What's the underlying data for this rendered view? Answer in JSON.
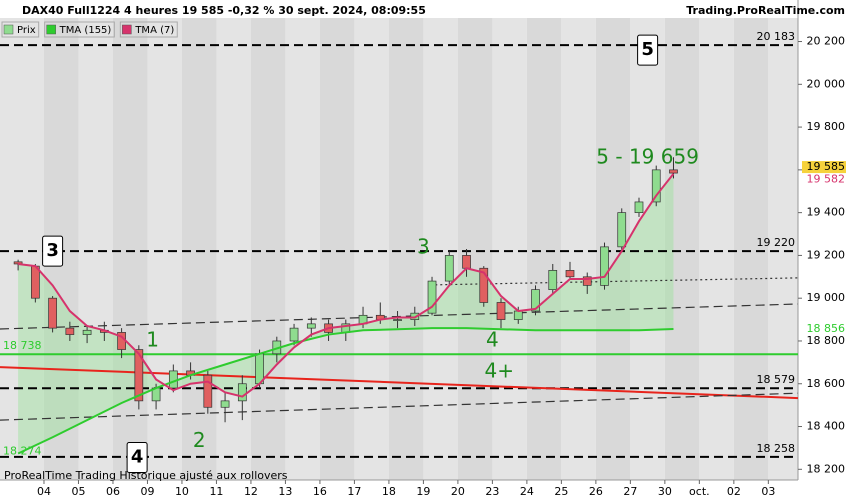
{
  "chart_data": {
    "type": "candlestick",
    "title": "DAX40 Full1224 4 heures 19 585 -0,32 % 30 sept. 2024, 08:09:55",
    "source": "Trading.ProRealTime.com",
    "footer": "ProRealTime Trading  Historique ajusté aux rollovers",
    "xlim": [
      -1.275,
      21.86
    ],
    "ylim": [
      18150,
      20310
    ],
    "xticks": [
      {
        "value": 0,
        "label": "04"
      },
      {
        "value": 1,
        "label": "05"
      },
      {
        "value": 2,
        "label": "06"
      },
      {
        "value": 3,
        "label": "09"
      },
      {
        "value": 4,
        "label": "10"
      },
      {
        "value": 5,
        "label": "11"
      },
      {
        "value": 6,
        "label": "12"
      },
      {
        "value": 7,
        "label": "13"
      },
      {
        "value": 8,
        "label": "16"
      },
      {
        "value": 9,
        "label": "17"
      },
      {
        "value": 10,
        "label": "18"
      },
      {
        "value": 11,
        "label": "19"
      },
      {
        "value": 12,
        "label": "20"
      },
      {
        "value": 13,
        "label": "23"
      },
      {
        "value": 14,
        "label": "24"
      },
      {
        "value": 15,
        "label": "25"
      },
      {
        "value": 16,
        "label": "26"
      },
      {
        "value": 17,
        "label": "27"
      },
      {
        "value": 18,
        "label": "30"
      },
      {
        "value": 19,
        "label": "oct."
      },
      {
        "value": 20,
        "label": "02"
      },
      {
        "value": 21,
        "label": "03"
      }
    ],
    "yticks": [
      {
        "value": 18200,
        "label": "18 200"
      },
      {
        "value": 18400,
        "label": "18 400"
      },
      {
        "value": 18600,
        "label": "18 600"
      },
      {
        "value": 18800,
        "label": "18 800"
      },
      {
        "value": 19000,
        "label": "19 000"
      },
      {
        "value": 19200,
        "label": "19 200"
      },
      {
        "value": 19400,
        "label": "19 400"
      },
      {
        "value": 19600,
        "label": "19 600"
      },
      {
        "value": 19800,
        "label": "19 800"
      },
      {
        "value": 20000,
        "label": "20 000"
      },
      {
        "value": 20200,
        "label": "20 200"
      }
    ],
    "candles": {
      "name": "Prix",
      "up_color": "#8fdc8f",
      "down_color": "#e06060",
      "x": [
        -0.75,
        -0.25,
        0.25,
        0.75,
        1.25,
        1.75,
        2.25,
        2.75,
        3.25,
        3.75,
        4.25,
        4.75,
        5.25,
        5.75,
        6.25,
        6.75,
        7.25,
        7.75,
        8.25,
        8.75,
        9.25,
        9.75,
        10.25,
        10.75,
        11.25,
        11.75,
        12.25,
        12.75,
        13.25,
        13.75,
        14.25,
        14.75,
        15.25,
        15.75,
        16.25,
        16.75,
        17.25,
        17.75,
        18.25
      ],
      "open": [
        19170,
        19150,
        19000,
        18860,
        18830,
        18850,
        18840,
        18760,
        18520,
        18580,
        18660,
        18640,
        18490,
        18520,
        18600,
        18740,
        18800,
        18860,
        18880,
        18840,
        18880,
        18920,
        18900,
        18900,
        18930,
        19080,
        19200,
        19140,
        18980,
        18900,
        18940,
        19040,
        19130,
        19100,
        19060,
        19240,
        19400,
        19450,
        19600
      ],
      "high": [
        19180,
        19160,
        19010,
        18890,
        18870,
        18890,
        18860,
        18780,
        18600,
        18690,
        18700,
        18660,
        18560,
        18640,
        18760,
        18820,
        18880,
        18910,
        18900,
        18900,
        18960,
        18980,
        18940,
        18960,
        19100,
        19220,
        19230,
        19150,
        19000,
        18960,
        19060,
        19160,
        19170,
        19120,
        19260,
        19420,
        19470,
        19620,
        19659
      ],
      "low": [
        19130,
        18980,
        18840,
        18800,
        18790,
        18800,
        18720,
        18480,
        18480,
        18560,
        18620,
        18460,
        18420,
        18430,
        18580,
        18700,
        18780,
        18820,
        18800,
        18800,
        18860,
        18880,
        18860,
        18870,
        18920,
        19060,
        19100,
        18960,
        18860,
        18880,
        18920,
        19020,
        19090,
        19020,
        19040,
        19220,
        19380,
        19430,
        19560
      ],
      "close": [
        19160,
        19000,
        18860,
        18830,
        18850,
        18840,
        18760,
        18520,
        18580,
        18660,
        18640,
        18490,
        18520,
        18600,
        18740,
        18800,
        18860,
        18880,
        18840,
        18880,
        18920,
        18900,
        18900,
        18930,
        19080,
        19200,
        19140,
        18980,
        18900,
        18940,
        19040,
        19130,
        19100,
        19060,
        19240,
        19400,
        19450,
        19600,
        19585
      ]
    },
    "series": [
      {
        "name": "TMA (155)",
        "color": "#2ecc2e",
        "x": [
          -0.75,
          0.25,
          1.25,
          2.25,
          3.25,
          4.25,
          5.25,
          6.25,
          7.25,
          8.25,
          9.25,
          10.25,
          11.25,
          12.25,
          13.25,
          14.25,
          15.25,
          16.25,
          17.25,
          18.25
        ],
        "values": [
          18274,
          18350,
          18430,
          18510,
          18580,
          18640,
          18690,
          18740,
          18790,
          18830,
          18850,
          18855,
          18860,
          18860,
          18855,
          18850,
          18850,
          18850,
          18850,
          18856
        ]
      },
      {
        "name": "TMA (7)",
        "color": "#d6336c",
        "x": [
          -0.75,
          -0.25,
          0.25,
          0.75,
          1.25,
          1.75,
          2.25,
          2.75,
          3.25,
          3.75,
          4.25,
          4.75,
          5.25,
          5.75,
          6.25,
          6.75,
          7.25,
          7.75,
          8.25,
          8.75,
          9.25,
          9.75,
          10.25,
          10.75,
          11.25,
          11.75,
          12.25,
          12.75,
          13.25,
          13.75,
          14.25,
          14.75,
          15.25,
          15.75,
          16.25,
          16.75,
          17.25,
          17.75,
          18.25
        ],
        "values": [
          19160,
          19150,
          19060,
          18940,
          18870,
          18850,
          18820,
          18740,
          18620,
          18570,
          18600,
          18610,
          18560,
          18540,
          18600,
          18690,
          18770,
          18830,
          18860,
          18870,
          18880,
          18900,
          18910,
          18910,
          18960,
          19060,
          19140,
          19120,
          19010,
          18940,
          18950,
          19020,
          19090,
          19090,
          19100,
          19220,
          19360,
          19480,
          19582
        ]
      }
    ],
    "levels": [
      {
        "value": 20183,
        "label": "20 183",
        "color": "#000",
        "style": "dashed"
      },
      {
        "value": 19220,
        "label": "19 220",
        "color": "#000",
        "style": "dashed"
      },
      {
        "value": 18579,
        "label": "18 579",
        "color": "#000",
        "style": "dashed"
      },
      {
        "value": 18258,
        "label": "18 258",
        "color": "#000",
        "style": "dashed"
      },
      {
        "value": 18738,
        "label": "18 738",
        "color": "#2ecc2e",
        "style": "solid"
      }
    ],
    "trendlines": [
      {
        "x": [
          -1.275,
          21.86
        ],
        "values": [
          18678,
          18533
        ],
        "color": "#e8241c",
        "style": "solid"
      },
      {
        "x": [
          -1.275,
          21.86
        ],
        "values": [
          18856,
          18973
        ],
        "color": "#333",
        "style": "dashed"
      },
      {
        "x": [
          -1.275,
          21.86
        ],
        "values": [
          18430,
          18556
        ],
        "color": "#333",
        "style": "dashed"
      },
      {
        "x": [
          11.2,
          21.86
        ],
        "values": [
          19062,
          19095
        ],
        "color": "#333",
        "style": "dotted"
      }
    ],
    "left_labels": [
      {
        "value": 18274,
        "label": "18 274",
        "color": "#2ecc2e"
      }
    ],
    "price_boxes": [
      {
        "value": 19585,
        "label": "19 585",
        "background": "#f6d23c",
        "color": "#000"
      },
      {
        "value": 19582,
        "label": "19 582",
        "background": "#ffffff",
        "color": "#d6336c"
      },
      {
        "value": 18856,
        "label": "18 856",
        "background": "#ffffff",
        "color": "#2ecc2e"
      }
    ],
    "annotations": [
      {
        "text": "5",
        "x": 17.5,
        "y": 20160,
        "boxed": true,
        "color": "#000"
      },
      {
        "text": "3",
        "x": 0.25,
        "y": 19220,
        "boxed": true,
        "color": "#000"
      },
      {
        "text": "4",
        "x": 2.7,
        "y": 18255,
        "boxed": true,
        "color": "#000"
      },
      {
        "text": "1",
        "x": 3.15,
        "y": 18800,
        "boxed": false,
        "color": "#1f8a1f"
      },
      {
        "text": "2",
        "x": 4.5,
        "y": 18330,
        "boxed": false,
        "color": "#1f8a1f"
      },
      {
        "text": "3",
        "x": 11.0,
        "y": 19235,
        "boxed": false,
        "color": "#1f8a1f"
      },
      {
        "text": "4",
        "x": 13.0,
        "y": 18800,
        "boxed": false,
        "color": "#1f8a1f"
      },
      {
        "text": "4+",
        "x": 13.2,
        "y": 18655,
        "boxed": false,
        "color": "#1f8a1f"
      },
      {
        "text": "5 - 19 659",
        "x": 17.5,
        "y": 19655,
        "boxed": false,
        "color": "#1f8a1f"
      }
    ]
  }
}
